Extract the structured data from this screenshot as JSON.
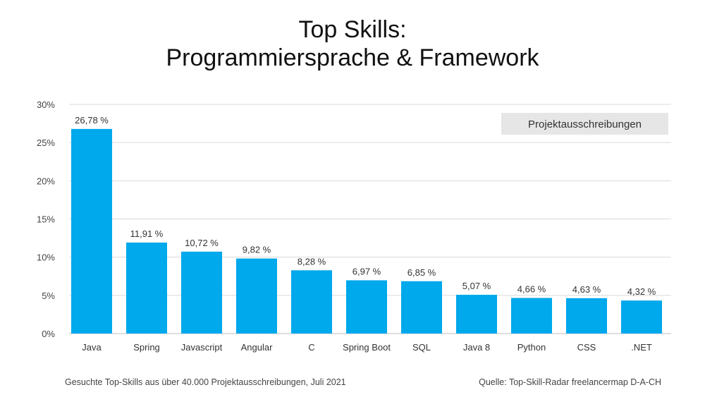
{
  "chart_data": {
    "type": "bar",
    "title_line1": "Top Skills:",
    "title_line2": "Programmiersprache & Framework",
    "categories": [
      "Java",
      "Spring",
      "Javascript",
      "Angular",
      "C",
      "Spring Boot",
      "SQL",
      "Java 8",
      "Python",
      "CSS",
      ".NET"
    ],
    "values": [
      26.78,
      11.91,
      10.72,
      9.82,
      8.28,
      6.97,
      6.85,
      5.07,
      4.66,
      4.63,
      4.32
    ],
    "value_labels": [
      "26,78 %",
      "11,91 %",
      "10,72 %",
      "9,82 %",
      "8,28 %",
      "6,97 %",
      "6,85 %",
      "5,07 %",
      "4,66 %",
      "4,63 %",
      "4,32 %"
    ],
    "y_ticks": [
      0,
      5,
      10,
      15,
      20,
      25,
      30
    ],
    "y_tick_labels": [
      "0%",
      "5%",
      "10%",
      "15%",
      "20%",
      "25%",
      "30%"
    ],
    "ylim": [
      0,
      30
    ],
    "grid": true,
    "legend": "Projektausschreibungen",
    "legend_position": "top-right",
    "bar_color": "#00a8ec"
  },
  "footer": {
    "left": "Gesuchte Top-Skills aus über 40.000 Projektausschreibungen, Juli 2021",
    "right": "Quelle: Top-Skill-Radar freelancermap D-A-CH"
  }
}
